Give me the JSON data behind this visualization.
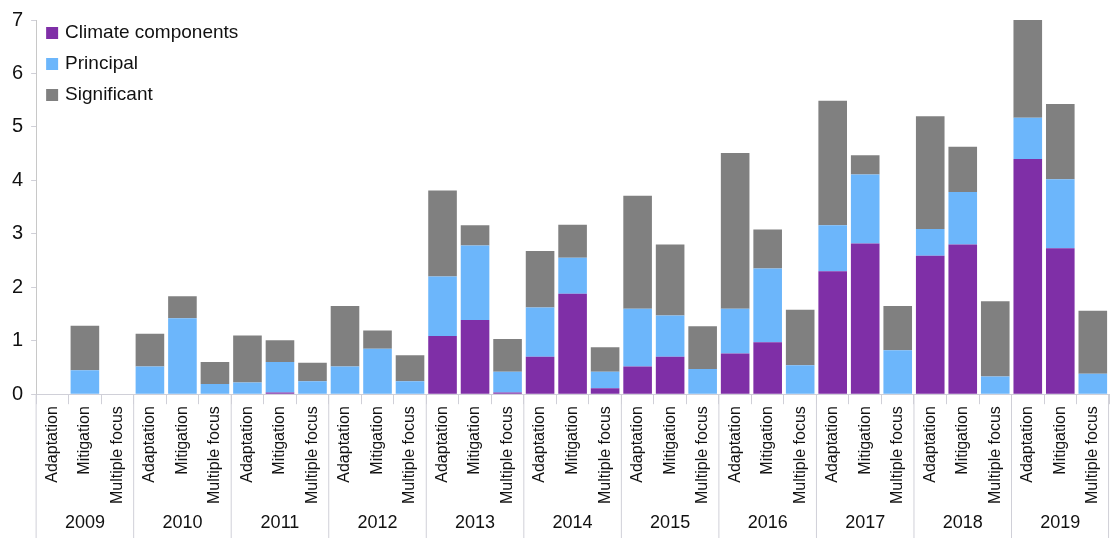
{
  "chart_data": {
    "type": "bar",
    "stacked": true,
    "categories": [
      "Adaptation",
      "Mitigation",
      "Multiple focus",
      "Adaptation",
      "Mitigation",
      "Multiple focus",
      "Adaptation",
      "Mitigation",
      "Multiple focus",
      "Adaptation",
      "Mitigation",
      "Multiple focus",
      "Adaptation",
      "Mitigation",
      "Multiple focus",
      "Adaptation",
      "Mitigation",
      "Multiple focus",
      "Adaptation",
      "Mitigation",
      "Multiple focus",
      "Adaptation",
      "Mitigation",
      "Multiple focus",
      "Adaptation",
      "Mitigation",
      "Multiple focus",
      "Adaptation",
      "Mitigation",
      "Multiple focus",
      "Adaptation",
      "Mitigation",
      "Multiple focus"
    ],
    "series": [
      {
        "name": "Climate components",
        "color": "#7f2fa7",
        "values": [
          0,
          0,
          0,
          0,
          0,
          0,
          0,
          0.03,
          0,
          0,
          0,
          0,
          1.09,
          1.39,
          0.03,
          0.7,
          1.88,
          0.11,
          0.52,
          0.7,
          0,
          0.76,
          0.97,
          0,
          2.3,
          2.82,
          0,
          2.59,
          2.8,
          0,
          4.4,
          2.73,
          0
        ]
      },
      {
        "name": "Principal",
        "color": "#6cb6fb",
        "values": [
          0,
          0.45,
          0,
          0.52,
          1.42,
          0.19,
          0.22,
          0.57,
          0.24,
          0.52,
          0.85,
          0.24,
          1.11,
          1.39,
          0.39,
          0.92,
          0.67,
          0.31,
          1.08,
          0.77,
          0.47,
          0.84,
          1.38,
          0.54,
          0.86,
          1.29,
          0.82,
          0.5,
          0.98,
          0.33,
          0.77,
          1.29,
          0.38
        ]
      },
      {
        "name": "Significant",
        "color": "#808080",
        "values": [
          0,
          0.83,
          0,
          0.61,
          0.41,
          0.41,
          0.88,
          0.41,
          0.35,
          1.13,
          0.34,
          0.49,
          1.61,
          0.38,
          0.61,
          1.06,
          0.62,
          0.46,
          2.11,
          1.33,
          0.8,
          2.91,
          0.73,
          1.04,
          2.33,
          0.36,
          0.83,
          2.11,
          0.85,
          1.41,
          1.83,
          1.41,
          1.18
        ]
      }
    ],
    "ylim": [
      0,
      7
    ],
    "yticks": [
      0,
      1,
      2,
      3,
      4,
      5,
      6,
      7
    ],
    "grid": false,
    "legend": "top left",
    "annotations": [
      "2009",
      "2010",
      "2011",
      "2012",
      "2013",
      "2014",
      "2015",
      "2016",
      "2017",
      "2018",
      "2019"
    ]
  }
}
